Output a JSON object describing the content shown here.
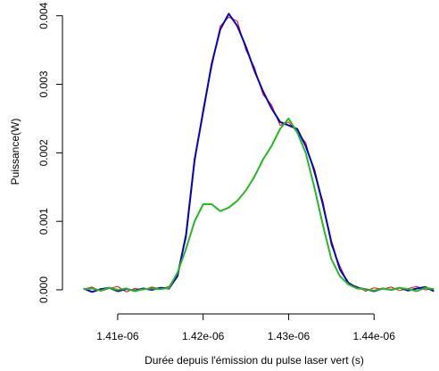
{
  "chart_data": {
    "type": "line",
    "x_label": "Durée depuis l'émission du pulse laser vert (s)",
    "y_label": "Puissance(W)",
    "x": [
      1.406e-06,
      1.407e-06,
      1.408e-06,
      1.409e-06,
      1.41e-06,
      1.411e-06,
      1.412e-06,
      1.413e-06,
      1.414e-06,
      1.415e-06,
      1.416e-06,
      1.417e-06,
      1.418e-06,
      1.419e-06,
      1.42e-06,
      1.421e-06,
      1.422e-06,
      1.423e-06,
      1.424e-06,
      1.425e-06,
      1.426e-06,
      1.427e-06,
      1.428e-06,
      1.429e-06,
      1.43e-06,
      1.431e-06,
      1.432e-06,
      1.433e-06,
      1.434e-06,
      1.435e-06,
      1.436e-06,
      1.437e-06,
      1.438e-06,
      1.439e-06,
      1.44e-06,
      1.441e-06,
      1.442e-06,
      1.443e-06,
      1.444e-06,
      1.445e-06,
      1.446e-06,
      1.447e-06
    ],
    "series": [
      {
        "color": "#ff0000",
        "values": [
          1e-05,
          4e-05,
          -2e-05,
          2e-05,
          5e-05,
          -3e-05,
          2e-05,
          0,
          4e-05,
          1e-05,
          5e-05,
          0.00025,
          0.00075,
          0.00185,
          0.00265,
          0.00325,
          0.00385,
          0.00398,
          0.00392,
          0.0035,
          0.00325,
          0.00285,
          0.0027,
          0.0024,
          0.00245,
          0.0023,
          0.00215,
          0.0017,
          0.0013,
          0.00065,
          0.00035,
          8e-05,
          5e-05,
          -2e-05,
          3e-05,
          1e-05,
          4e-05,
          -1e-05,
          2e-05,
          5e-05,
          0,
          2e-05
        ]
      },
      {
        "color": "#0000cc",
        "values": [
          2e-05,
          -3e-05,
          1e-05,
          3e-05,
          -2e-05,
          1e-05,
          -1e-05,
          2e-05,
          0,
          3e-05,
          2e-05,
          0.0002,
          0.0008,
          0.0019,
          0.0026,
          0.0033,
          0.0038,
          0.00403,
          0.00385,
          0.00355,
          0.0032,
          0.0029,
          0.00265,
          0.00245,
          0.0024,
          0.00235,
          0.0021,
          0.00175,
          0.00125,
          0.0007,
          0.0003,
          0.0001,
          3e-05,
          1e-05,
          -2e-05,
          2e-05,
          0,
          3e-05,
          -1e-05,
          2e-05,
          4e-05,
          -2e-05
        ]
      },
      {
        "color": "#22bb22",
        "values": [
          1e-05,
          2e-05,
          -1e-05,
          3e-05,
          0,
          2e-05,
          -2e-05,
          1e-05,
          2e-05,
          1e-05,
          3e-05,
          0.00025,
          0.0006,
          0.001,
          0.00125,
          0.00125,
          0.00115,
          0.0012,
          0.0013,
          0.00145,
          0.00165,
          0.0019,
          0.0021,
          0.00235,
          0.0025,
          0.0023,
          0.002,
          0.0015,
          0.00095,
          0.00045,
          0.0002,
          8e-05,
          2e-05,
          1e-05,
          -1e-05,
          2e-05,
          0,
          3e-05,
          1e-05,
          -2e-05,
          3e-05,
          1e-05
        ]
      }
    ],
    "xlim": [
      1.40458e-06,
      1.4476e-06
    ],
    "ylim": [
      -0.00013,
      0.0041
    ],
    "xticks": [
      {
        "value": 1.41e-06,
        "label": "1.41e-06"
      },
      {
        "value": 1.42e-06,
        "label": "1.42e-06"
      },
      {
        "value": 1.43e-06,
        "label": "1.43e-06"
      },
      {
        "value": 1.44e-06,
        "label": "1.44e-06"
      }
    ],
    "yticks": [
      {
        "value": 0,
        "label": "0.000"
      },
      {
        "value": 0.001,
        "label": "0.001"
      },
      {
        "value": 0.002,
        "label": "0.002"
      },
      {
        "value": 0.003,
        "label": "0.003"
      },
      {
        "value": 0.004,
        "label": "0.004"
      }
    ]
  }
}
